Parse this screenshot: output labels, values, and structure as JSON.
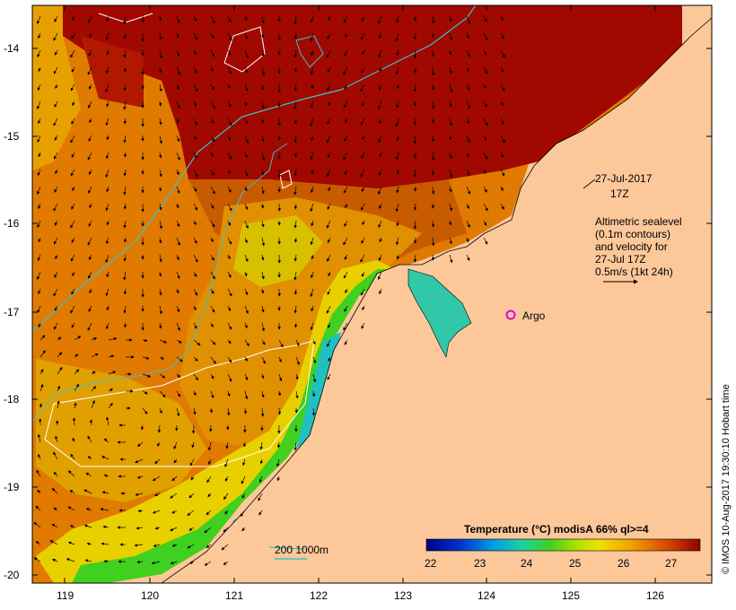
{
  "map": {
    "date_line1": "27-Jul-2017",
    "date_line2": "17Z",
    "legend_lines": [
      "Altimetric sealevel",
      "(0.1m contours)",
      "and velocity for",
      "27-Jul 17Z",
      "0.5m/s (1kt 24h)"
    ],
    "argo_label": "Argo",
    "depth_label": "200  1000m",
    "credit": "© IMOS 10-Aug-2017 19:30:10 Hobart time",
    "colorbar": {
      "title": "Temperature (°C) modisA 66% ql>=4",
      "ticks": [
        "22",
        "23",
        "24",
        "25",
        "26",
        "27"
      ]
    },
    "lat_ticks": [
      "-14",
      "-15",
      "-16",
      "-17",
      "-18",
      "-19",
      "-20"
    ],
    "lon_ticks": [
      "119",
      "120",
      "121",
      "122",
      "123",
      "124",
      "125",
      "126"
    ],
    "colors": {
      "land": "#fcc89a",
      "warm": "#a00800",
      "orange": "#e07a00",
      "yellow": "#e8d000",
      "green": "#40d020",
      "cyan": "#20c0c0",
      "blue": "#1030c0",
      "argo": "#e000e0",
      "isobath": "#40c0c8"
    }
  }
}
